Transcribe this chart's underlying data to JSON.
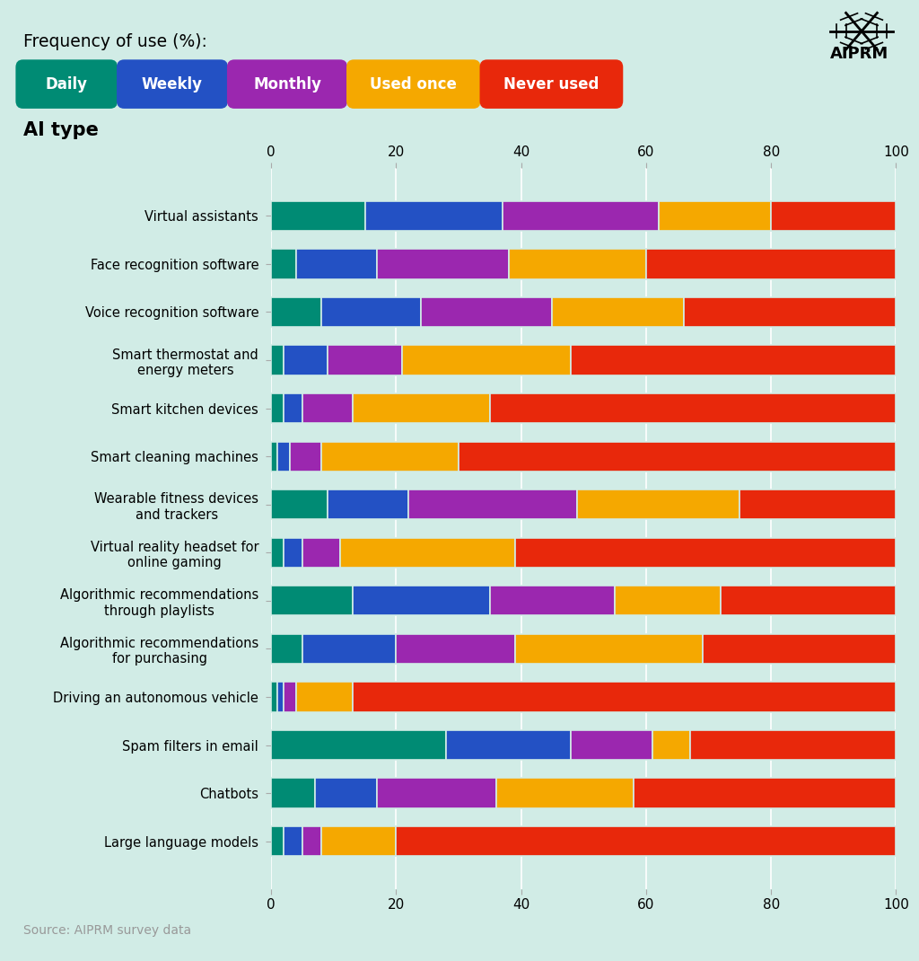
{
  "categories": [
    "Virtual assistants",
    "Face recognition software",
    "Voice recognition software",
    "Smart thermostat and\nenergy meters",
    "Smart kitchen devices",
    "Smart cleaning machines",
    "Wearable fitness devices\nand trackers",
    "Virtual reality headset for\nonline gaming",
    "Algorithmic recommendations\nthrough playlists",
    "Algorithmic recommendations\nfor purchasing",
    "Driving an autonomous vehicle",
    "Spam filters in email",
    "Chatbots",
    "Large language models"
  ],
  "data": {
    "Daily": [
      15,
      4,
      8,
      2,
      2,
      1,
      9,
      2,
      13,
      5,
      1,
      28,
      7,
      2
    ],
    "Weekly": [
      22,
      13,
      16,
      7,
      3,
      2,
      13,
      3,
      22,
      15,
      1,
      20,
      10,
      3
    ],
    "Monthly": [
      25,
      21,
      21,
      12,
      8,
      5,
      27,
      6,
      20,
      19,
      2,
      13,
      19,
      3
    ],
    "Used once": [
      18,
      22,
      21,
      27,
      22,
      22,
      26,
      28,
      17,
      30,
      9,
      6,
      22,
      12
    ],
    "Never used": [
      20,
      40,
      34,
      52,
      65,
      70,
      25,
      61,
      28,
      31,
      87,
      33,
      42,
      80
    ]
  },
  "colors": {
    "Daily": "#008B74",
    "Weekly": "#2351C4",
    "Monthly": "#9B27AF",
    "Used once": "#F5A800",
    "Never used": "#E8280B"
  },
  "legend_labels": [
    "Daily",
    "Weekly",
    "Monthly",
    "Used once",
    "Never used"
  ],
  "freq_title": "Frequency of use (%):",
  "ai_type_label": "AI type",
  "background_color": "#D1ECE6",
  "source": "Source: AIPRM survey data",
  "legend_box_colors": [
    "#008B74",
    "#2351C4",
    "#9B27AF",
    "#F5A800",
    "#E8280B"
  ],
  "bar_gap_color": "#D1ECE6"
}
